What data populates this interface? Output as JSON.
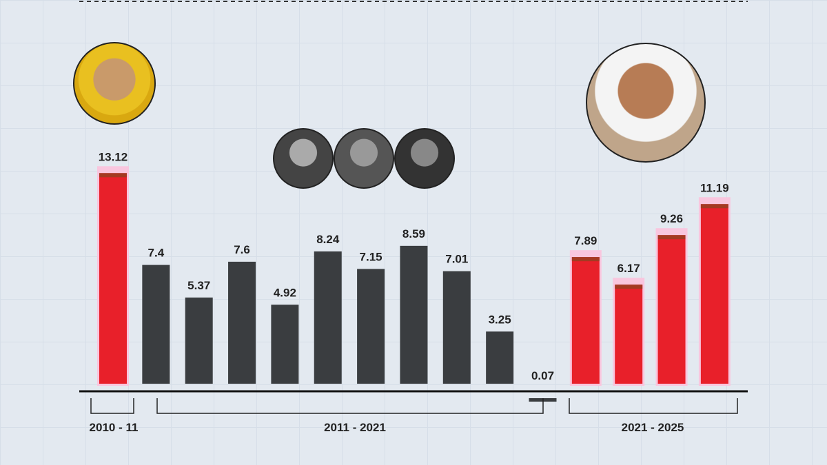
{
  "chart_data": {
    "type": "bar",
    "values": [
      13.12,
      7.4,
      5.37,
      7.6,
      4.92,
      8.24,
      7.15,
      8.59,
      7.01,
      3.25,
      0.07,
      7.89,
      6.17,
      9.26,
      11.19
    ],
    "bar_colors": [
      "#e8202a",
      "#3a3d40",
      "#3a3d40",
      "#3a3d40",
      "#3a3d40",
      "#3a3d40",
      "#3a3d40",
      "#3a3d40",
      "#3a3d40",
      "#3a3d40",
      "#3a3d40",
      "#e8202a",
      "#e8202a",
      "#e8202a",
      "#e8202a"
    ],
    "groups": [
      {
        "label": "2010 - 11",
        "from": 0,
        "to": 0
      },
      {
        "label": "2011 - 2021",
        "from": 1,
        "to": 10
      },
      {
        "label": "2021 - 2025",
        "from": 11,
        "to": 14
      }
    ],
    "ylim": [
      0,
      14
    ],
    "grid": true
  },
  "colors": {
    "ruling": "#e8202a",
    "opposition": "#3a3d40",
    "background": "#e3e9f0"
  }
}
